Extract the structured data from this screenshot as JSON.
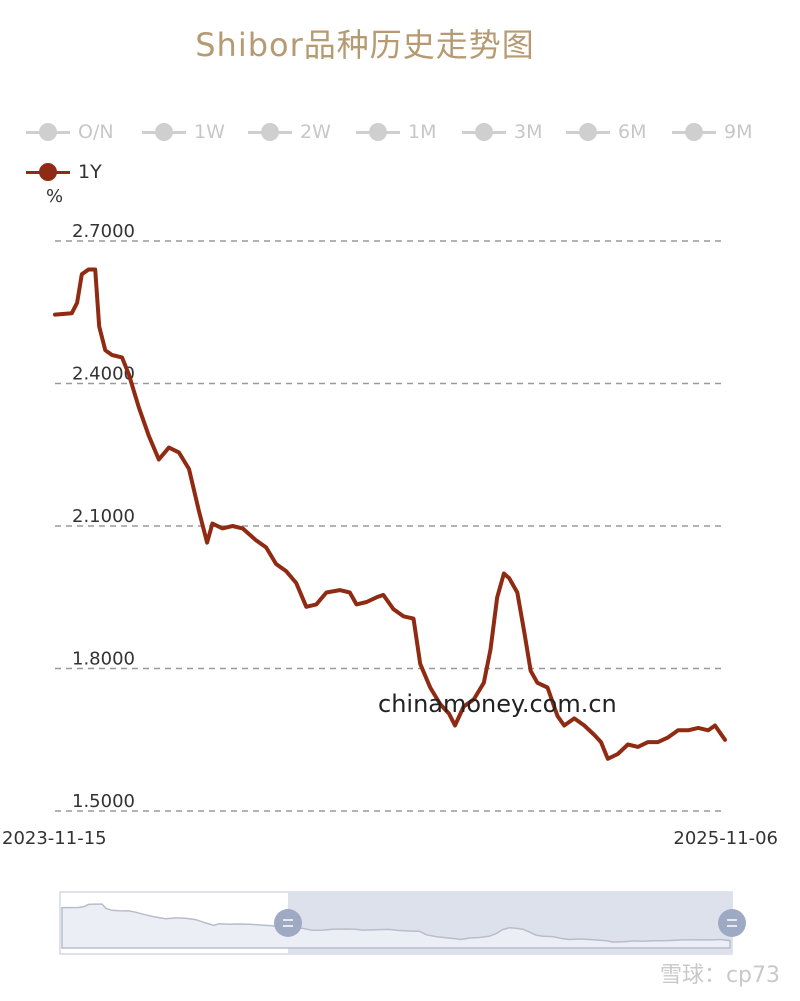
{
  "title": "Shibor品种历史走势图",
  "legend": [
    {
      "label": "O/N",
      "active": false
    },
    {
      "label": "1W",
      "active": false
    },
    {
      "label": "2W",
      "active": false
    },
    {
      "label": "1M",
      "active": false
    },
    {
      "label": "3M",
      "active": false
    },
    {
      "label": "6M",
      "active": false
    },
    {
      "label": "9M",
      "active": false
    },
    {
      "label": "1Y",
      "active": true
    }
  ],
  "unit": "%",
  "watermark": "chinamoney.com.cn",
  "footer": "雪球：cp73",
  "colors": {
    "series": "#8e2b12",
    "inactive": "#cfcfcf",
    "title": "#b59a72"
  },
  "chart_data": {
    "type": "line",
    "title": "Shibor品种历史走势图",
    "ylabel": "%",
    "ylim": [
      1.5,
      2.7
    ],
    "yticks": [
      "2.7000",
      "2.4000",
      "2.1000",
      "1.8000",
      "1.5000"
    ],
    "xlim": [
      "2023-11-15",
      "2025-11-06"
    ],
    "xtick_labels": [
      "2023-11-15",
      "2025-11-06"
    ],
    "grid": "horizontal-dashed",
    "legend_position": "top",
    "series": [
      {
        "name": "1Y",
        "points": [
          [
            0,
            2.545
          ],
          [
            0.025,
            2.548
          ],
          [
            0.033,
            2.57
          ],
          [
            0.04,
            2.63
          ],
          [
            0.05,
            2.64
          ],
          [
            0.06,
            2.64
          ],
          [
            0.066,
            2.52
          ],
          [
            0.075,
            2.47
          ],
          [
            0.085,
            2.46
          ],
          [
            0.1,
            2.455
          ],
          [
            0.11,
            2.42
          ],
          [
            0.125,
            2.35
          ],
          [
            0.14,
            2.29
          ],
          [
            0.155,
            2.24
          ],
          [
            0.17,
            2.265
          ],
          [
            0.185,
            2.255
          ],
          [
            0.2,
            2.22
          ],
          [
            0.215,
            2.13
          ],
          [
            0.227,
            2.065
          ],
          [
            0.235,
            2.105
          ],
          [
            0.25,
            2.095
          ],
          [
            0.265,
            2.1
          ],
          [
            0.28,
            2.095
          ],
          [
            0.3,
            2.07
          ],
          [
            0.315,
            2.055
          ],
          [
            0.33,
            2.02
          ],
          [
            0.345,
            2.005
          ],
          [
            0.36,
            1.98
          ],
          [
            0.375,
            1.93
          ],
          [
            0.39,
            1.935
          ],
          [
            0.405,
            1.96
          ],
          [
            0.425,
            1.965
          ],
          [
            0.44,
            1.96
          ],
          [
            0.45,
            1.935
          ],
          [
            0.465,
            1.94
          ],
          [
            0.48,
            1.95
          ],
          [
            0.49,
            1.955
          ],
          [
            0.505,
            1.925
          ],
          [
            0.52,
            1.91
          ],
          [
            0.535,
            1.905
          ],
          [
            0.545,
            1.81
          ],
          [
            0.56,
            1.76
          ],
          [
            0.575,
            1.725
          ],
          [
            0.588,
            1.705
          ],
          [
            0.597,
            1.68
          ],
          [
            0.61,
            1.72
          ],
          [
            0.625,
            1.735
          ],
          [
            0.64,
            1.77
          ],
          [
            0.65,
            1.84
          ],
          [
            0.66,
            1.95
          ],
          [
            0.67,
            2.0
          ],
          [
            0.678,
            1.99
          ],
          [
            0.69,
            1.96
          ],
          [
            0.7,
            1.88
          ],
          [
            0.71,
            1.795
          ],
          [
            0.72,
            1.77
          ],
          [
            0.735,
            1.76
          ],
          [
            0.75,
            1.7
          ],
          [
            0.76,
            1.68
          ],
          [
            0.775,
            1.695
          ],
          [
            0.79,
            1.68
          ],
          [
            0.805,
            1.66
          ],
          [
            0.815,
            1.645
          ],
          [
            0.825,
            1.61
          ],
          [
            0.84,
            1.62
          ],
          [
            0.855,
            1.64
          ],
          [
            0.87,
            1.635
          ],
          [
            0.885,
            1.645
          ],
          [
            0.9,
            1.645
          ],
          [
            0.915,
            1.655
          ],
          [
            0.93,
            1.67
          ],
          [
            0.945,
            1.67
          ],
          [
            0.96,
            1.675
          ],
          [
            0.975,
            1.67
          ],
          [
            0.985,
            1.68
          ],
          [
            1.0,
            1.65
          ]
        ]
      }
    ]
  }
}
